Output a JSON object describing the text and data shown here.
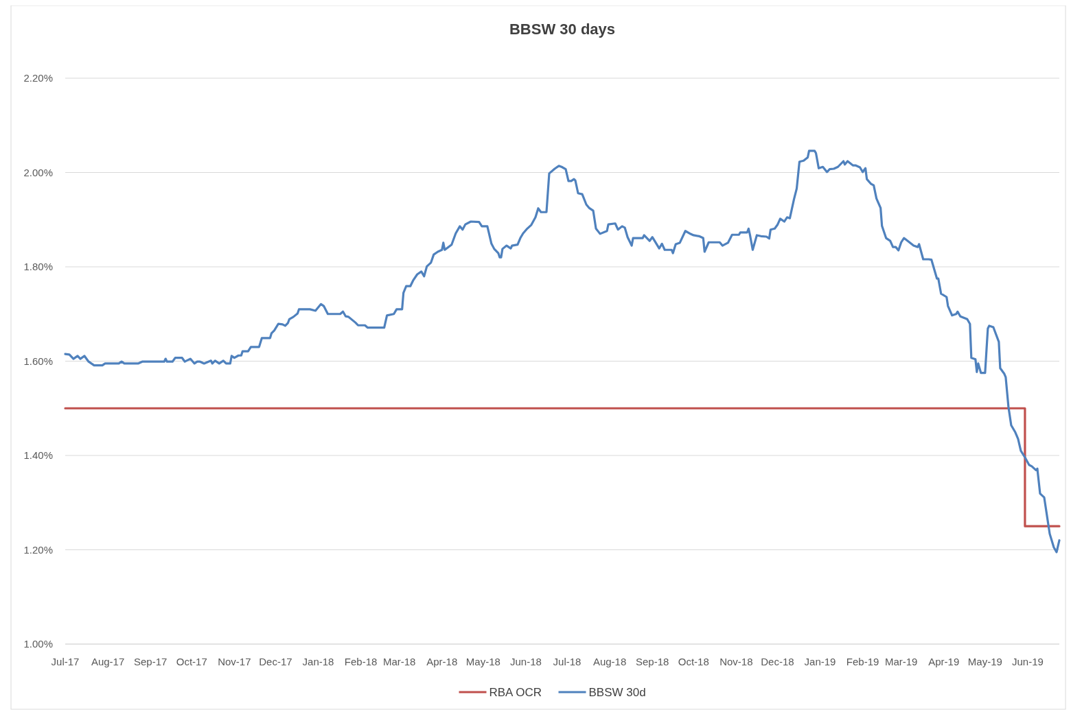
{
  "chart_data": {
    "type": "line",
    "title": "BBSW 30 days",
    "xlim": [
      "2017-07-01",
      "2019-06-24"
    ],
    "xticks": [
      {
        "value": "2017-07-01",
        "label": "Jul-17"
      },
      {
        "value": "2017-08-01",
        "label": "Aug-17"
      },
      {
        "value": "2017-09-01",
        "label": "Sep-17"
      },
      {
        "value": "2017-10-01",
        "label": "Oct-17"
      },
      {
        "value": "2017-11-01",
        "label": "Nov-17"
      },
      {
        "value": "2017-12-01",
        "label": "Dec-17"
      },
      {
        "value": "2018-01-01",
        "label": "Jan-18"
      },
      {
        "value": "2018-02-01",
        "label": "Feb-18"
      },
      {
        "value": "2018-03-01",
        "label": "Mar-18"
      },
      {
        "value": "2018-04-01",
        "label": "Apr-18"
      },
      {
        "value": "2018-05-01",
        "label": "May-18"
      },
      {
        "value": "2018-06-01",
        "label": "Jun-18"
      },
      {
        "value": "2018-07-01",
        "label": "Jul-18"
      },
      {
        "value": "2018-08-01",
        "label": "Aug-18"
      },
      {
        "value": "2018-09-01",
        "label": "Sep-18"
      },
      {
        "value": "2018-10-01",
        "label": "Oct-18"
      },
      {
        "value": "2018-11-01",
        "label": "Nov-18"
      },
      {
        "value": "2018-12-01",
        "label": "Dec-18"
      },
      {
        "value": "2019-01-01",
        "label": "Jan-19"
      },
      {
        "value": "2019-02-01",
        "label": "Feb-19"
      },
      {
        "value": "2019-03-01",
        "label": "Mar-19"
      },
      {
        "value": "2019-04-01",
        "label": "Apr-19"
      },
      {
        "value": "2019-05-01",
        "label": "May-19"
      },
      {
        "value": "2019-06-01",
        "label": "Jun-19"
      }
    ],
    "ylim": [
      1.0,
      2.2
    ],
    "yticks": [
      {
        "value": 1.0,
        "label": "1.00%"
      },
      {
        "value": 1.2,
        "label": "1.20%"
      },
      {
        "value": 1.4,
        "label": "1.40%"
      },
      {
        "value": 1.6,
        "label": "1.60%"
      },
      {
        "value": 1.8,
        "label": "1.80%"
      },
      {
        "value": 2.0,
        "label": "2.00%"
      },
      {
        "value": 2.2,
        "label": "2.20%"
      }
    ],
    "grid": "y",
    "legend": "bottom",
    "marker": "none",
    "line_style": "solid",
    "series": [
      {
        "name": "RBA OCR",
        "type": "step",
        "color": "#c0504d",
        "x": [
          "2017-07-01",
          "2019-05-30",
          "2019-06-24"
        ],
        "values": [
          1.5,
          1.25,
          1.25
        ]
      },
      {
        "name": "BBSW 30d",
        "color": "#4f81bd",
        "x": [
          "2017-07-01",
          "2017-07-04",
          "2017-07-07",
          "2017-07-10",
          "2017-07-12",
          "2017-07-15",
          "2017-07-18",
          "2017-07-22",
          "2017-07-28",
          "2017-07-30",
          "2017-08-09",
          "2017-08-11",
          "2017-08-13",
          "2017-08-23",
          "2017-08-26",
          "2017-09-11",
          "2017-09-12",
          "2017-09-13",
          "2017-09-17",
          "2017-09-19",
          "2017-09-24",
          "2017-09-26",
          "2017-09-30",
          "2017-10-03",
          "2017-10-05",
          "2017-10-07",
          "2017-10-10",
          "2017-10-15",
          "2017-10-16",
          "2017-10-18",
          "2017-10-21",
          "2017-10-24",
          "2017-10-26",
          "2017-10-29",
          "2017-10-30",
          "2017-11-01",
          "2017-11-04",
          "2017-11-06",
          "2017-11-07",
          "2017-11-11",
          "2017-11-13",
          "2017-11-19",
          "2017-11-21",
          "2017-11-27",
          "2017-11-28",
          "2017-11-30",
          "2017-12-03",
          "2017-12-06",
          "2017-12-08",
          "2017-12-10",
          "2017-12-11",
          "2017-12-14",
          "2017-12-17",
          "2017-12-18",
          "2017-12-26",
          "2017-12-30",
          "2018-01-03",
          "2018-01-05",
          "2018-01-08",
          "2018-01-17",
          "2018-01-19",
          "2018-01-21",
          "2018-01-23",
          "2018-01-28",
          "2018-01-30",
          "2018-02-04",
          "2018-02-06",
          "2018-02-18",
          "2018-02-20",
          "2018-02-25",
          "2018-02-27",
          "2018-03-03",
          "2018-03-04",
          "2018-03-06",
          "2018-03-09",
          "2018-03-11",
          "2018-03-14",
          "2018-03-17",
          "2018-03-19",
          "2018-03-21",
          "2018-03-24",
          "2018-03-26",
          "2018-03-29",
          "2018-04-01",
          "2018-04-02",
          "2018-04-03",
          "2018-04-08",
          "2018-04-11",
          "2018-04-14",
          "2018-04-16",
          "2018-04-18",
          "2018-04-22",
          "2018-04-28",
          "2018-04-30",
          "2018-05-04",
          "2018-05-07",
          "2018-05-09",
          "2018-05-12",
          "2018-05-13",
          "2018-05-14",
          "2018-05-15",
          "2018-05-18",
          "2018-05-21",
          "2018-05-22",
          "2018-05-26",
          "2018-05-28",
          "2018-05-30",
          "2018-06-02",
          "2018-06-05",
          "2018-06-08",
          "2018-06-10",
          "2018-06-12",
          "2018-06-16",
          "2018-06-18",
          "2018-06-22",
          "2018-06-25",
          "2018-06-27",
          "2018-06-30",
          "2018-07-02",
          "2018-07-04",
          "2018-07-06",
          "2018-07-07",
          "2018-07-09",
          "2018-07-12",
          "2018-07-15",
          "2018-07-17",
          "2018-07-20",
          "2018-07-22",
          "2018-07-25",
          "2018-07-30",
          "2018-07-31",
          "2018-08-05",
          "2018-08-07",
          "2018-08-10",
          "2018-08-12",
          "2018-08-14",
          "2018-08-17",
          "2018-08-18",
          "2018-08-25",
          "2018-08-26",
          "2018-08-30",
          "2018-09-01",
          "2018-09-06",
          "2018-09-08",
          "2018-09-10",
          "2018-09-15",
          "2018-09-16",
          "2018-09-18",
          "2018-09-21",
          "2018-09-25",
          "2018-09-28",
          "2018-10-01",
          "2018-10-05",
          "2018-10-08",
          "2018-10-09",
          "2018-10-12",
          "2018-10-20",
          "2018-10-22",
          "2018-10-26",
          "2018-10-29",
          "2018-11-03",
          "2018-11-04",
          "2018-11-09",
          "2018-11-10",
          "2018-11-11",
          "2018-11-13",
          "2018-11-16",
          "2018-11-19",
          "2018-11-23",
          "2018-11-25",
          "2018-11-26",
          "2018-11-29",
          "2018-12-01",
          "2018-12-03",
          "2018-12-06",
          "2018-12-08",
          "2018-12-10",
          "2018-12-13",
          "2018-12-15",
          "2018-12-17",
          "2018-12-20",
          "2018-12-23",
          "2018-12-24",
          "2018-12-28",
          "2018-12-29",
          "2018-12-31",
          "2019-01-03",
          "2019-01-06",
          "2019-01-08",
          "2019-01-11",
          "2019-01-14",
          "2019-01-18",
          "2019-01-19",
          "2019-01-21",
          "2019-01-25",
          "2019-01-27",
          "2019-01-30",
          "2019-02-01",
          "2019-02-03",
          "2019-02-04",
          "2019-02-07",
          "2019-02-09",
          "2019-02-11",
          "2019-02-14",
          "2019-02-15",
          "2019-02-18",
          "2019-02-21",
          "2019-02-23",
          "2019-02-25",
          "2019-02-27",
          "2019-03-01",
          "2019-03-03",
          "2019-03-07",
          "2019-03-10",
          "2019-03-13",
          "2019-03-14",
          "2019-03-17",
          "2019-03-21",
          "2019-03-23",
          "2019-03-27",
          "2019-03-28",
          "2019-03-30",
          "2019-04-03",
          "2019-04-04",
          "2019-04-07",
          "2019-04-10",
          "2019-04-11",
          "2019-04-13",
          "2019-04-18",
          "2019-04-20",
          "2019-04-21",
          "2019-04-24",
          "2019-04-25",
          "2019-04-26",
          "2019-04-28",
          "2019-05-01",
          "2019-05-03",
          "2019-05-04",
          "2019-05-07",
          "2019-05-11",
          "2019-05-12",
          "2019-05-15",
          "2019-05-16",
          "2019-05-18",
          "2019-05-20",
          "2019-05-23",
          "2019-05-25",
          "2019-05-27",
          "2019-05-30",
          "2019-06-02",
          "2019-06-04",
          "2019-06-07",
          "2019-06-08",
          "2019-06-10",
          "2019-06-13",
          "2019-06-17",
          "2019-06-20",
          "2019-06-22",
          "2019-06-24"
        ],
        "values": [
          1.615,
          1.614,
          1.605,
          1.611,
          1.605,
          1.611,
          1.599,
          1.591,
          1.591,
          1.595,
          1.595,
          1.599,
          1.595,
          1.595,
          1.599,
          1.599,
          1.605,
          1.599,
          1.599,
          1.607,
          1.607,
          1.599,
          1.605,
          1.595,
          1.599,
          1.599,
          1.595,
          1.601,
          1.595,
          1.601,
          1.595,
          1.601,
          1.595,
          1.595,
          1.611,
          1.607,
          1.612,
          1.612,
          1.621,
          1.621,
          1.63,
          1.63,
          1.649,
          1.649,
          1.659,
          1.665,
          1.679,
          1.678,
          1.675,
          1.681,
          1.689,
          1.694,
          1.701,
          1.71,
          1.71,
          1.707,
          1.721,
          1.717,
          1.7,
          1.7,
          1.705,
          1.695,
          1.694,
          1.682,
          1.676,
          1.676,
          1.671,
          1.671,
          1.697,
          1.7,
          1.71,
          1.71,
          1.745,
          1.759,
          1.759,
          1.771,
          1.784,
          1.79,
          1.78,
          1.801,
          1.809,
          1.826,
          1.832,
          1.836,
          1.851,
          1.836,
          1.847,
          1.871,
          1.886,
          1.879,
          1.89,
          1.896,
          1.895,
          1.886,
          1.886,
          1.849,
          1.838,
          1.829,
          1.82,
          1.82,
          1.838,
          1.845,
          1.839,
          1.845,
          1.847,
          1.861,
          1.871,
          1.881,
          1.889,
          1.905,
          1.924,
          1.916,
          1.916,
          1.998,
          2.008,
          2.014,
          2.012,
          2.007,
          1.982,
          1.982,
          1.986,
          1.983,
          1.956,
          1.954,
          1.932,
          1.925,
          1.919,
          1.881,
          1.87,
          1.876,
          1.89,
          1.892,
          1.879,
          1.886,
          1.883,
          1.863,
          1.845,
          1.861,
          1.861,
          1.867,
          1.855,
          1.863,
          1.839,
          1.849,
          1.836,
          1.836,
          1.829,
          1.848,
          1.851,
          1.876,
          1.871,
          1.867,
          1.865,
          1.861,
          1.832,
          1.852,
          1.852,
          1.845,
          1.851,
          1.868,
          1.868,
          1.873,
          1.873,
          1.881,
          1.868,
          1.836,
          1.867,
          1.865,
          1.864,
          1.86,
          1.879,
          1.881,
          1.889,
          1.902,
          1.896,
          1.905,
          1.903,
          1.943,
          1.966,
          2.023,
          2.025,
          2.032,
          2.046,
          2.046,
          2.041,
          2.009,
          2.012,
          2.001,
          2.007,
          2.008,
          2.012,
          2.024,
          2.017,
          2.024,
          2.015,
          2.015,
          2.011,
          2.001,
          2.009,
          1.986,
          1.976,
          1.973,
          1.945,
          1.925,
          1.887,
          1.861,
          1.855,
          1.842,
          1.842,
          1.835,
          1.852,
          1.861,
          1.852,
          1.845,
          1.842,
          1.848,
          1.816,
          1.816,
          1.815,
          1.775,
          1.775,
          1.743,
          1.736,
          1.717,
          1.697,
          1.7,
          1.705,
          1.695,
          1.689,
          1.679,
          1.607,
          1.604,
          1.577,
          1.595,
          1.575,
          1.575,
          1.669,
          1.675,
          1.672,
          1.641,
          1.585,
          1.573,
          1.566,
          1.503,
          1.464,
          1.449,
          1.435,
          1.41,
          1.396,
          1.38,
          1.377,
          1.369,
          1.372,
          1.319,
          1.311,
          1.234,
          1.205,
          1.195,
          1.22
        ]
      }
    ]
  }
}
